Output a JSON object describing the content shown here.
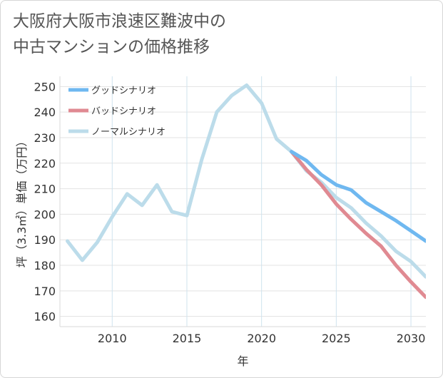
{
  "title_lines": [
    "大阪府大阪市浪速区難波中の",
    "中古マンションの価格推移"
  ],
  "chart_data": {
    "type": "line",
    "title": "大阪府大阪市浪速区難波中の中古マンションの価格推移",
    "xlabel": "年",
    "ylabel": "坪（3.3㎡）単価（万円）",
    "xlim": [
      2006.5,
      2031
    ],
    "ylim": [
      156,
      254
    ],
    "x_ticks": [
      2010,
      2015,
      2020,
      2025,
      2030
    ],
    "y_ticks": [
      160,
      170,
      180,
      190,
      200,
      210,
      220,
      230,
      240,
      250
    ],
    "grid": true,
    "legend_position": "top-left",
    "series": [
      {
        "name": "グッドシナリオ",
        "color": "#6fb8f0",
        "x": [
          2022,
          2023,
          2024,
          2025,
          2026,
          2027,
          2028,
          2029,
          2030,
          2031
        ],
        "values": [
          224.5,
          221,
          215.5,
          211.5,
          209.5,
          204.5,
          201,
          197.5,
          193.5,
          189.5
        ]
      },
      {
        "name": "バッドシナリオ",
        "color": "#e08a92",
        "x": [
          2022,
          2023,
          2024,
          2025,
          2026,
          2027,
          2028,
          2029,
          2030,
          2031
        ],
        "values": [
          224.5,
          217.5,
          211.5,
          204,
          198,
          192.5,
          187.5,
          180,
          173.5,
          167.5
        ]
      },
      {
        "name": "ノーマルシナリオ",
        "color": "#bcdcea",
        "x": [
          2007,
          2008,
          2009,
          2010,
          2011,
          2012,
          2013,
          2014,
          2015,
          2016,
          2017,
          2018,
          2019,
          2020,
          2021,
          2022,
          2023,
          2024,
          2025,
          2026,
          2027,
          2028,
          2029,
          2030,
          2031
        ],
        "values": [
          189.5,
          182,
          189,
          199,
          208,
          203.5,
          211.5,
          201,
          199.5,
          221.5,
          240,
          246.5,
          250.5,
          243.5,
          229.5,
          224.5,
          217,
          212.5,
          206.5,
          202.5,
          196.5,
          191.5,
          185.5,
          181.5,
          175.5
        ]
      }
    ]
  }
}
